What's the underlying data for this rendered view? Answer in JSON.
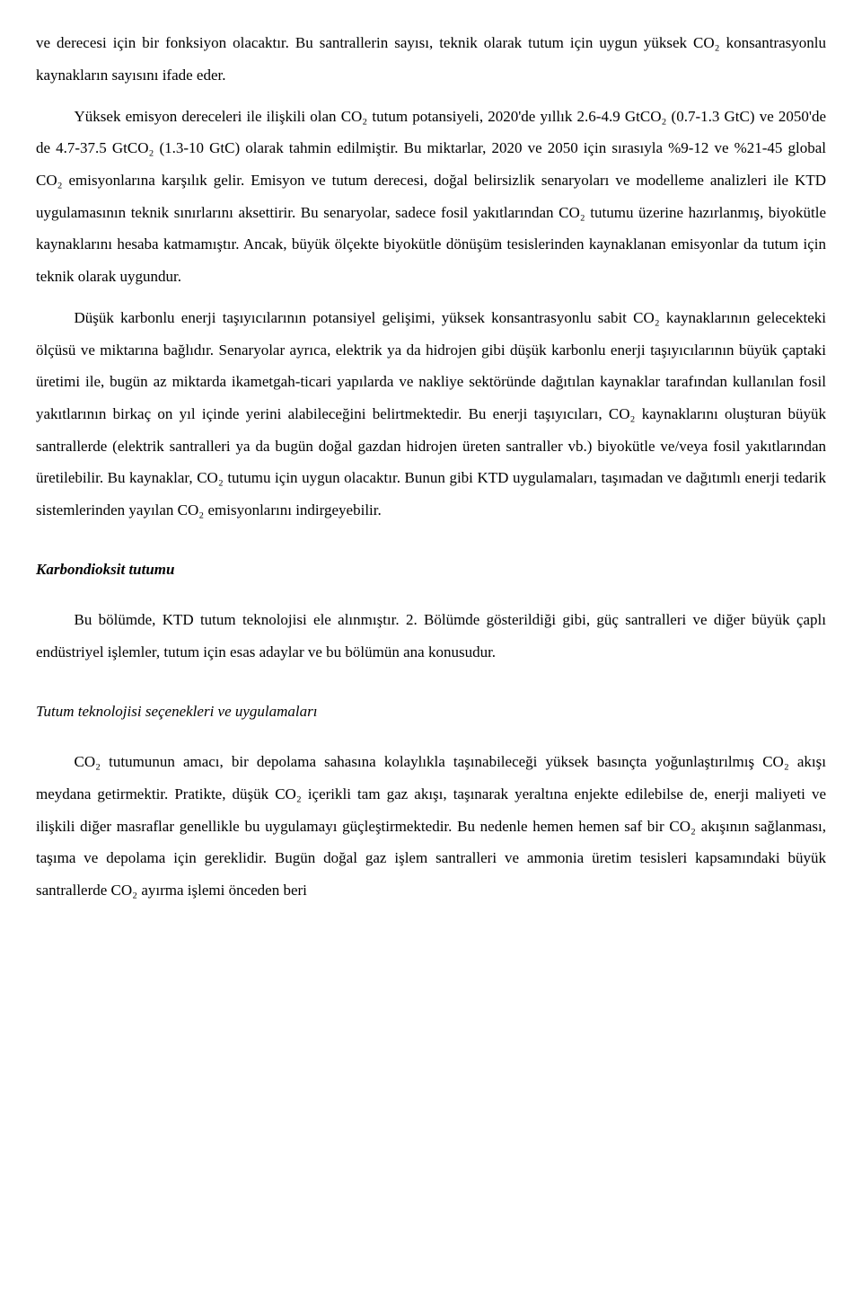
{
  "paragraphs": {
    "p1": "ve derecesi için bir fonksiyon olacaktır. Bu santrallerin sayısı, teknik olarak tutum için uygun yüksek CO₂ konsantrasyonlu kaynakların sayısını ifade eder.",
    "p2": "Yüksek emisyon dereceleri ile ilişkili olan CO₂ tutum potansiyeli, 2020'de yıllık 2.6-4.9 GtCO₂ (0.7-1.3 GtC) ve 2050'de de 4.7-37.5 GtCO₂ (1.3-10 GtC) olarak tahmin edilmiştir. Bu miktarlar, 2020 ve 2050 için sırasıyla %9-12 ve %21-45 global CO₂ emisyonlarına karşılık gelir. Emisyon ve tutum derecesi, doğal belirsizlik senaryoları ve modelleme analizleri ile KTD uygulamasının teknik sınırlarını aksettirir. Bu senaryolar, sadece fosil yakıtlarından CO₂ tutumu üzerine hazırlanmış, biyokütle kaynaklarını hesaba katmamıştır. Ancak, büyük ölçekte biyokütle dönüşüm tesislerinden kaynaklanan emisyonlar da tutum için teknik olarak uygundur.",
    "p3": "Düşük karbonlu enerji taşıyıcılarının potansiyel gelişimi, yüksek konsantrasyonlu sabit CO₂ kaynaklarının gelecekteki ölçüsü ve miktarına bağlıdır. Senaryolar ayrıca, elektrik ya da hidrojen gibi düşük karbonlu enerji taşıyıcılarının büyük çaptaki üretimi ile, bugün az miktarda ikametgah-ticari yapılarda ve nakliye sektöründe dağıtılan kaynaklar tarafından kullanılan fosil yakıtlarının birkaç on yıl içinde yerini alabileceğini belirtmektedir. Bu enerji taşıyıcıları, CO₂ kaynaklarını oluşturan büyük santrallerde (elektrik santralleri ya da bugün doğal gazdan hidrojen üreten santraller vb.) biyokütle ve/veya fosil yakıtlarından üretilebilir. Bu kaynaklar, CO₂ tutumu için uygun olacaktır. Bunun gibi KTD uygulamaları, taşımadan ve dağıtımlı enerji tedarik sistemlerinden yayılan CO₂ emisyonlarını indirgeyebilir.",
    "p4": "Bu bölümde, KTD tutum teknolojisi ele alınmıştır. 2. Bölümde gösterildiği gibi, güç santralleri ve diğer büyük çaplı endüstriyel işlemler, tutum için esas adaylar ve bu bölümün ana konusudur.",
    "p5": "CO₂ tutumunun amacı, bir depolama sahasına kolaylıkla taşınabileceği yüksek basınçta yoğunlaştırılmış CO₂ akışı meydana getirmektir. Pratikte, düşük CO₂ içerikli tam gaz akışı, taşınarak yeraltına enjekte edilebilse de, enerji maliyeti ve ilişkili diğer masraflar genellikle bu uygulamayı güçleştirmektedir. Bu nedenle hemen hemen saf bir CO₂ akışının sağlanması, taşıma ve depolama için gereklidir. Bugün doğal gaz işlem santralleri ve ammonia üretim tesisleri kapsamındaki büyük santrallerde CO₂ ayırma işlemi önceden beri"
  },
  "headings": {
    "h1": "Karbondioksit tutumu",
    "h2": "Tutum teknolojisi seçenekleri ve uygulamaları"
  }
}
